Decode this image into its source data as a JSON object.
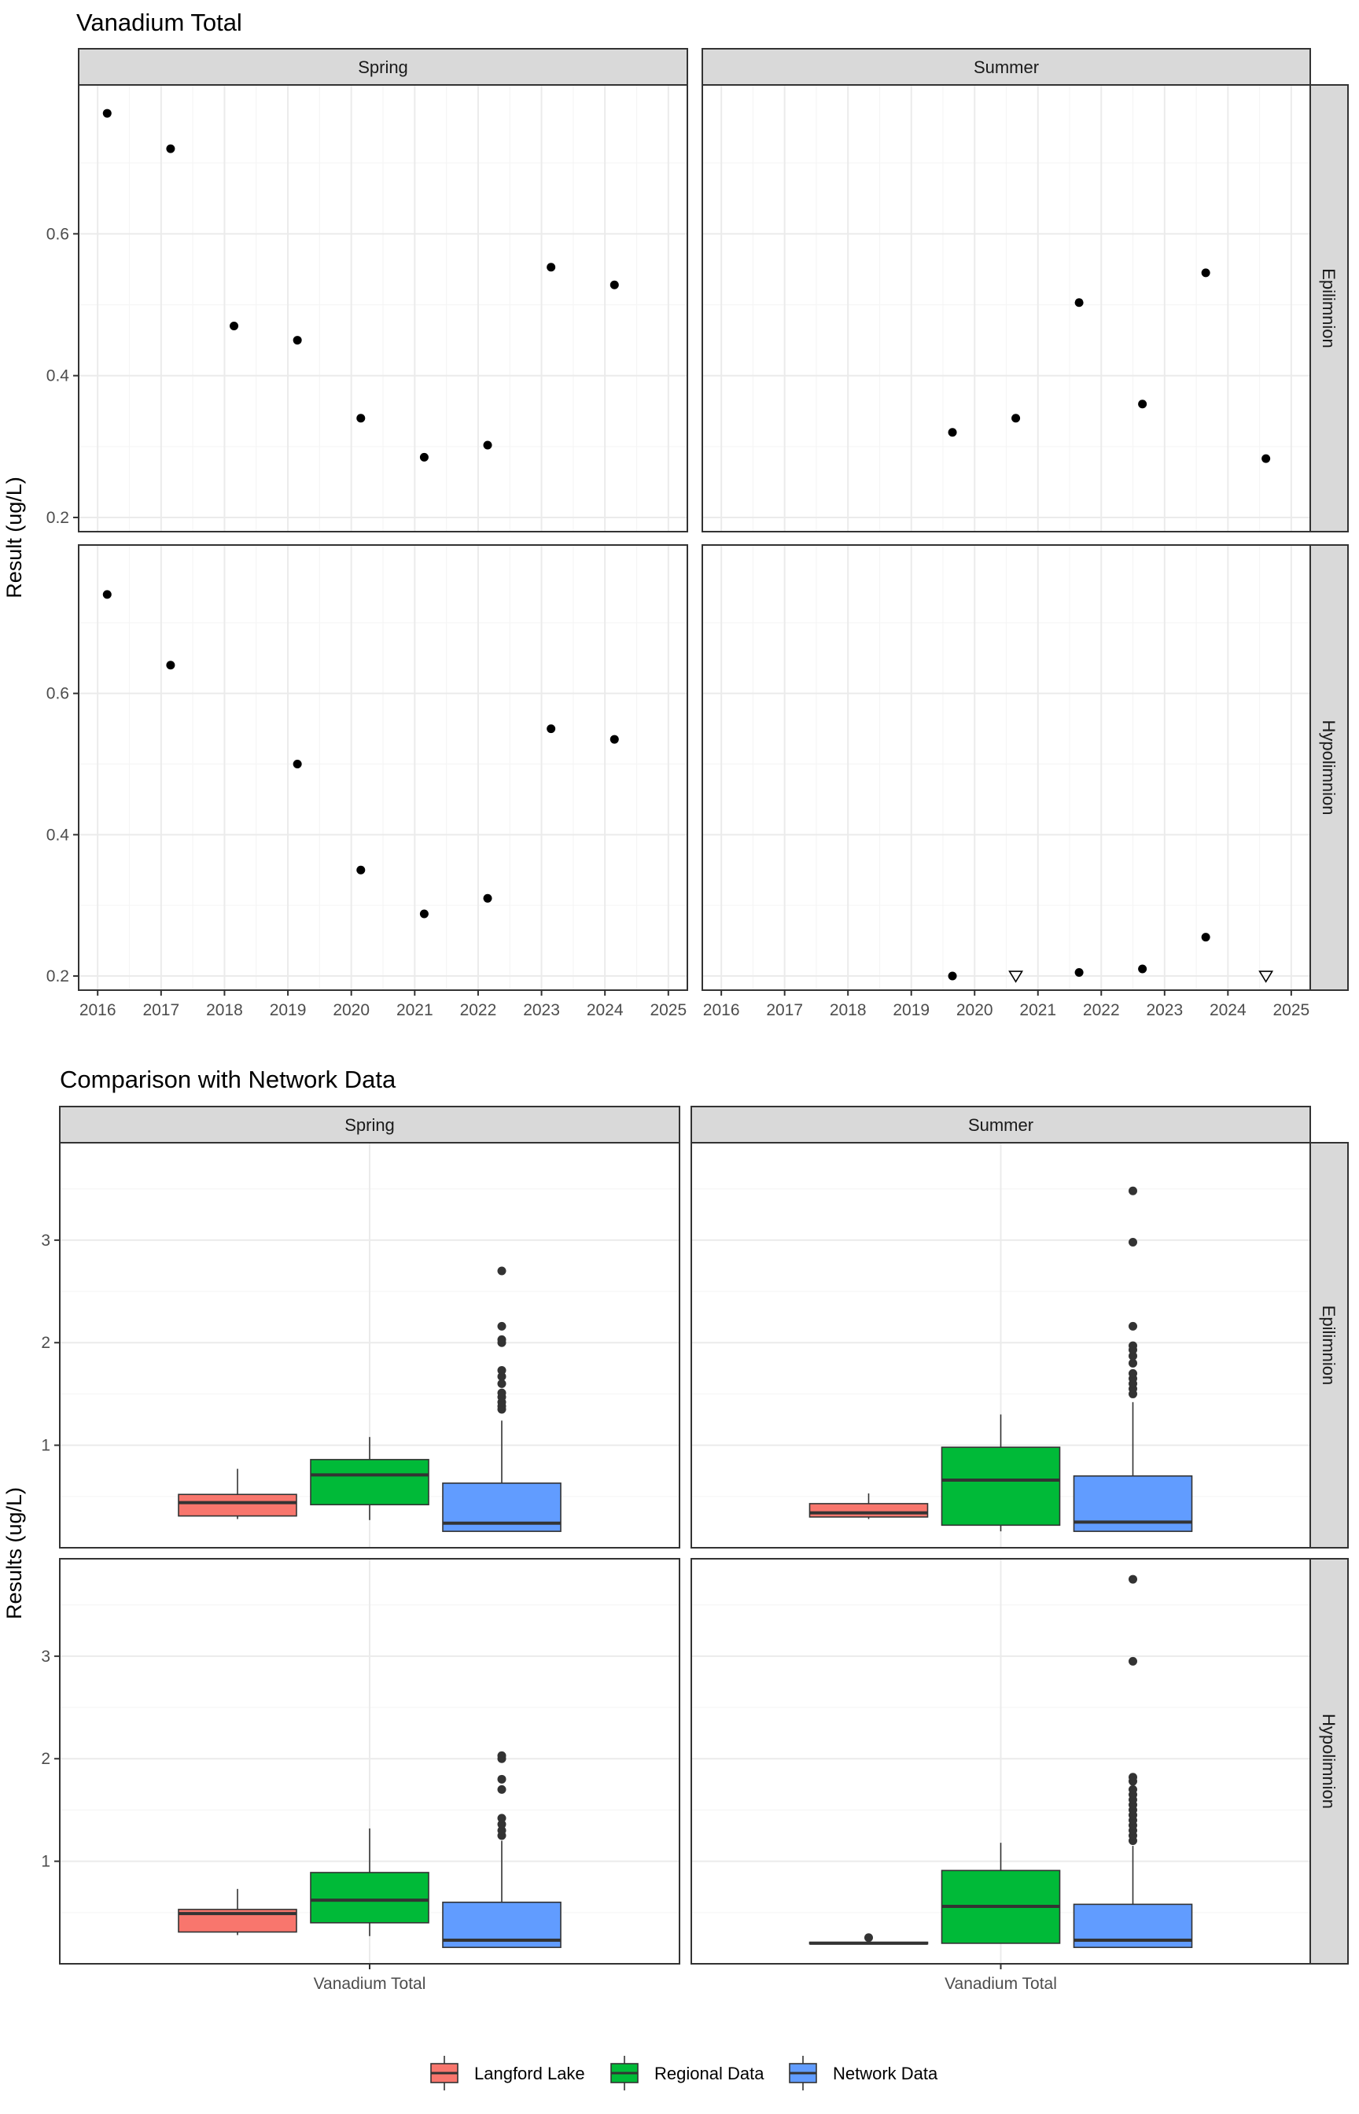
{
  "chart_data": [
    {
      "type": "scatter",
      "title": "Vanadium Total",
      "ylabel": "Result (ug/L)",
      "xlabel": "",
      "col_facets": [
        "Spring",
        "Summer"
      ],
      "row_facets": [
        "Epilimnion",
        "Hypolimnion"
      ],
      "xlim": [
        2015.7,
        2025.3
      ],
      "ylim": [
        0.18,
        0.81
      ],
      "x_ticks": [
        "2016",
        "2017",
        "2018",
        "2019",
        "2020",
        "2021",
        "2022",
        "2023",
        "2024",
        "2025"
      ],
      "x_tick_values": [
        2016,
        2017,
        2018,
        2019,
        2020,
        2021,
        2022,
        2023,
        2024,
        2025
      ],
      "y_ticks": [
        "0.2",
        "0.4",
        "0.6"
      ],
      "y_tick_values": [
        0.2,
        0.4,
        0.6
      ],
      "grid": true,
      "panels": [
        {
          "col": 0,
          "row": 0,
          "points": [
            {
              "x": 2016.15,
              "y": 0.77
            },
            {
              "x": 2017.15,
              "y": 0.72
            },
            {
              "x": 2018.15,
              "y": 0.47
            },
            {
              "x": 2019.15,
              "y": 0.45
            },
            {
              "x": 2020.15,
              "y": 0.34
            },
            {
              "x": 2021.15,
              "y": 0.285
            },
            {
              "x": 2022.15,
              "y": 0.302
            },
            {
              "x": 2023.15,
              "y": 0.553
            },
            {
              "x": 2024.15,
              "y": 0.528
            }
          ]
        },
        {
          "col": 1,
          "row": 0,
          "points": [
            {
              "x": 2019.65,
              "y": 0.32
            },
            {
              "x": 2020.65,
              "y": 0.34
            },
            {
              "x": 2021.65,
              "y": 0.503
            },
            {
              "x": 2022.65,
              "y": 0.36
            },
            {
              "x": 2023.65,
              "y": 0.545
            },
            {
              "x": 2024.6,
              "y": 0.283
            }
          ]
        },
        {
          "col": 0,
          "row": 1,
          "points": [
            {
              "x": 2016.15,
              "y": 0.74
            },
            {
              "x": 2017.15,
              "y": 0.64
            },
            {
              "x": 2019.15,
              "y": 0.5
            },
            {
              "x": 2020.15,
              "y": 0.35
            },
            {
              "x": 2021.15,
              "y": 0.288
            },
            {
              "x": 2022.15,
              "y": 0.31
            },
            {
              "x": 2023.15,
              "y": 0.55
            },
            {
              "x": 2024.15,
              "y": 0.535
            }
          ]
        },
        {
          "col": 1,
          "row": 1,
          "points": [
            {
              "x": 2019.65,
              "y": 0.2
            },
            {
              "x": 2020.65,
              "y": 0.2,
              "nondetect": true
            },
            {
              "x": 2021.65,
              "y": 0.205
            },
            {
              "x": 2022.65,
              "y": 0.21
            },
            {
              "x": 2023.65,
              "y": 0.255
            },
            {
              "x": 2024.6,
              "y": 0.2,
              "nondetect": true
            }
          ]
        }
      ]
    },
    {
      "type": "box",
      "title": "Comparison with Network Data",
      "ylabel": "Results (ug/L)",
      "xlabel": "",
      "x_category": "Vanadium Total",
      "col_facets": [
        "Spring",
        "Summer"
      ],
      "row_facets": [
        "Epilimnion",
        "Hypolimnion"
      ],
      "ylim": [
        0.0,
        3.95
      ],
      "y_ticks": [
        "1",
        "2",
        "3"
      ],
      "y_tick_values": [
        1,
        2,
        3
      ],
      "grid": true,
      "legend": {
        "position": "bottom",
        "entries": [
          {
            "name": "Langford Lake",
            "color": "#F8766D"
          },
          {
            "name": "Regional Data",
            "color": "#00BA38"
          },
          {
            "name": "Network Data",
            "color": "#619CFF"
          }
        ]
      },
      "panels": [
        {
          "col": 0,
          "row": 0,
          "groups": [
            {
              "name": "Langford Lake",
              "min": 0.28,
              "q1": 0.31,
              "median": 0.44,
              "q3": 0.52,
              "max": 0.77,
              "outliers": []
            },
            {
              "name": "Regional Data",
              "min": 0.27,
              "q1": 0.42,
              "median": 0.71,
              "q3": 0.86,
              "max": 1.08,
              "outliers": []
            },
            {
              "name": "Network Data",
              "min": 0.16,
              "q1": 0.16,
              "median": 0.24,
              "q3": 0.63,
              "max": 1.24,
              "outliers": [
                1.35,
                1.38,
                1.42,
                1.47,
                1.51,
                1.6,
                1.67,
                1.73,
                2.0,
                2.03,
                2.16,
                2.7
              ]
            }
          ]
        },
        {
          "col": 1,
          "row": 0,
          "groups": [
            {
              "name": "Langford Lake",
              "min": 0.28,
              "q1": 0.3,
              "median": 0.34,
              "q3": 0.43,
              "max": 0.53,
              "outliers": []
            },
            {
              "name": "Regional Data",
              "min": 0.16,
              "q1": 0.22,
              "median": 0.66,
              "q3": 0.98,
              "max": 1.3,
              "outliers": []
            },
            {
              "name": "Network Data",
              "min": 0.16,
              "q1": 0.16,
              "median": 0.25,
              "q3": 0.7,
              "max": 1.42,
              "outliers": [
                1.5,
                1.55,
                1.6,
                1.65,
                1.7,
                1.8,
                1.87,
                1.93,
                1.97,
                2.16,
                2.98,
                3.48
              ]
            }
          ]
        },
        {
          "col": 0,
          "row": 1,
          "groups": [
            {
              "name": "Langford Lake",
              "min": 0.28,
              "q1": 0.31,
              "median": 0.49,
              "q3": 0.53,
              "max": 0.73,
              "outliers": []
            },
            {
              "name": "Regional Data",
              "min": 0.27,
              "q1": 0.4,
              "median": 0.62,
              "q3": 0.89,
              "max": 1.32,
              "outliers": []
            },
            {
              "name": "Network Data",
              "min": 0.16,
              "q1": 0.16,
              "median": 0.23,
              "q3": 0.6,
              "max": 1.2,
              "outliers": [
                1.25,
                1.3,
                1.36,
                1.42,
                1.7,
                1.8,
                2.0,
                2.03
              ]
            }
          ]
        },
        {
          "col": 1,
          "row": 1,
          "groups": [
            {
              "name": "Langford Lake",
              "min": 0.2,
              "q1": 0.2,
              "median": 0.2,
              "q3": 0.21,
              "max": 0.21,
              "outliers": [
                0.255
              ]
            },
            {
              "name": "Regional Data",
              "min": 0.2,
              "q1": 0.2,
              "median": 0.56,
              "q3": 0.91,
              "max": 1.18,
              "outliers": []
            },
            {
              "name": "Network Data",
              "min": 0.16,
              "q1": 0.16,
              "median": 0.23,
              "q3": 0.58,
              "max": 1.15,
              "outliers": [
                1.2,
                1.25,
                1.3,
                1.35,
                1.4,
                1.45,
                1.5,
                1.55,
                1.6,
                1.65,
                1.7,
                1.78,
                1.82,
                2.95,
                3.75
              ]
            }
          ]
        }
      ]
    }
  ]
}
